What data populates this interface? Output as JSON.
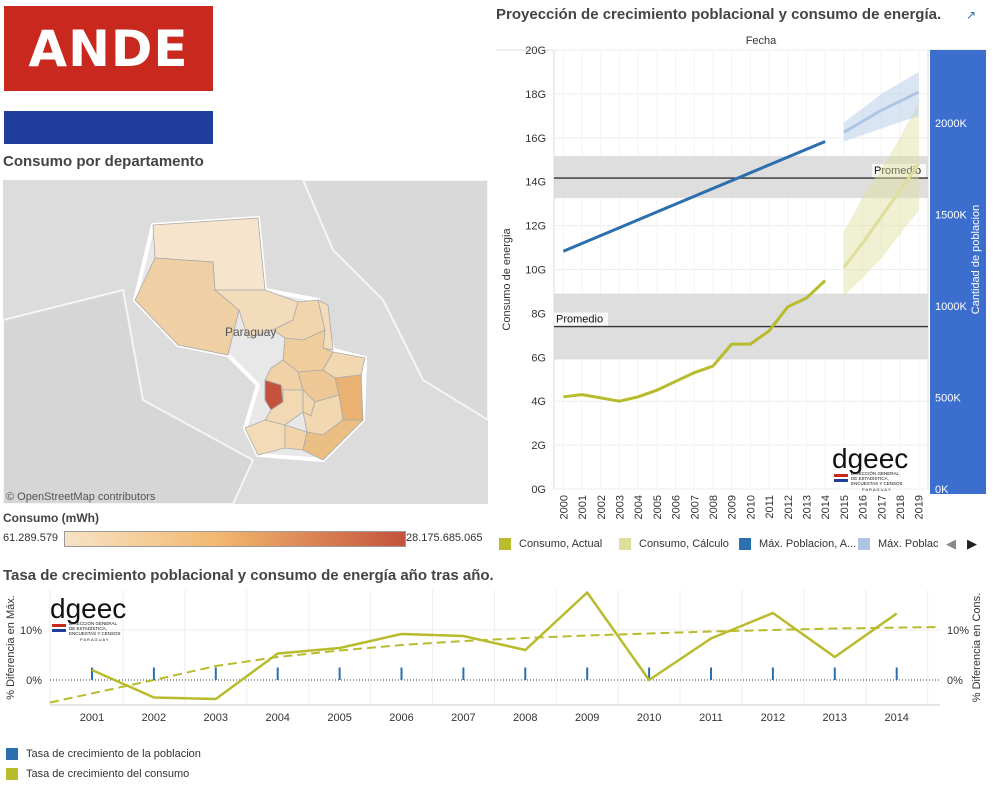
{
  "brand": {
    "logo_text": "ANDE"
  },
  "map_section": {
    "title": "Consumo por departamento",
    "country_label": "Paraguay",
    "attribution": "© OpenStreetMap contributors",
    "legend_title": "Consumo (mWh)",
    "legend_min": "61.289.579",
    "legend_max": "28.175.685.065",
    "colors": {
      "low": "#f7e3c6",
      "mid": "#f2b86e",
      "high": "#c4523c"
    }
  },
  "projection_section": {
    "title": "Proyección de crecimiento poblacional y consumo de energía."
  },
  "growth_section": {
    "title": "Tasa de crecimiento poblacional y consumo de energía año tras año."
  },
  "dgeec_logo": {
    "name": "dgeec",
    "line1": "DIRECCIÓN GENERAL",
    "line2": "DE ESTADÍSTICA,",
    "line3": "ENCUESTAS Y CENSOS",
    "line4": "P A R A G U A Y"
  },
  "chart_data": [
    {
      "type": "line",
      "title": "Proyección de crecimiento poblacional y consumo de energía.",
      "xlabel": "Fecha",
      "ylabel": "Consumo de energia",
      "y2label": "Cantidad de poblacion",
      "ylim": [
        0,
        20
      ],
      "y2lim": [
        0,
        2400
      ],
      "y_ticks": [
        "0G",
        "2G",
        "4G",
        "6G",
        "8G",
        "10G",
        "12G",
        "14G",
        "16G",
        "18G",
        "20G"
      ],
      "y2_ticks": [
        {
          "v": 0,
          "label": "0K"
        },
        {
          "v": 500,
          "label": "500K"
        },
        {
          "v": 1000,
          "label": "1000K"
        },
        {
          "v": 1500,
          "label": "1500K"
        },
        {
          "v": 2000,
          "label": "2000K"
        }
      ],
      "x": [
        "2000",
        "2001",
        "2002",
        "2003",
        "2004",
        "2005",
        "2006",
        "2007",
        "2008",
        "2009",
        "2010",
        "2011",
        "2012",
        "2013",
        "2014",
        "2015",
        "2016",
        "2017",
        "2018",
        "2019"
      ],
      "reference_lines": [
        {
          "label": "Promedio",
          "axis": "y",
          "value": 7.4,
          "band": [
            5.9,
            8.9
          ]
        },
        {
          "label": "Promedio",
          "axis": "y2",
          "value": 1700,
          "band": [
            1590,
            1820
          ]
        }
      ],
      "series": [
        {
          "name": "Consumo, Actual",
          "axis": "y",
          "color": "#b8bc2c",
          "x": [
            "2000",
            "2001",
            "2002",
            "2003",
            "2004",
            "2005",
            "2006",
            "2007",
            "2008",
            "2009",
            "2010",
            "2011",
            "2012",
            "2013",
            "2014"
          ],
          "values": [
            4.2,
            4.3,
            4.15,
            4.0,
            4.2,
            4.5,
            4.9,
            5.3,
            5.6,
            6.6,
            6.6,
            7.2,
            8.3,
            8.7,
            9.5
          ]
        },
        {
          "name": "Consumo, Cálculo",
          "axis": "y",
          "color": "#dedd9c",
          "x": [
            "2015",
            "2016",
            "2017",
            "2018",
            "2019"
          ],
          "values": [
            10.1,
            11.2,
            12.4,
            13.6,
            14.8
          ],
          "band_low": [
            8.8,
            9.6,
            10.5,
            11.6,
            12.7
          ],
          "band_high": [
            11.7,
            13.3,
            14.6,
            16.0,
            17.6
          ]
        },
        {
          "name": "Máx. Poblacion, A...",
          "axis": "y2",
          "color": "#2b6fae",
          "x": [
            "2000",
            "2014"
          ],
          "values": [
            1300,
            1900
          ]
        },
        {
          "name": "Máx. Poblac",
          "axis": "y2",
          "color": "#aec5e6",
          "x": [
            "2015",
            "2016",
            "2017",
            "2018",
            "2019"
          ],
          "values": [
            1950,
            2010,
            2070,
            2120,
            2170
          ],
          "band_low": [
            1900,
            1935,
            1970,
            2005,
            2040
          ],
          "band_high": [
            2005,
            2080,
            2160,
            2220,
            2280
          ]
        }
      ]
    },
    {
      "type": "line",
      "title": "Tasa de crecimiento poblacional y consumo de energía año tras año.",
      "ylabel": "% Diferencia en Máx.",
      "y2label": "% Diferencia en Cons.",
      "y_ticks": [
        {
          "v": 0,
          "label": "0%"
        },
        {
          "v": 10,
          "label": "10%"
        }
      ],
      "y2_ticks": [
        {
          "v": 0,
          "label": "0%"
        },
        {
          "v": 10,
          "label": "10%"
        }
      ],
      "ylim": [
        -5,
        18
      ],
      "x": [
        "2001",
        "2002",
        "2003",
        "2004",
        "2005",
        "2006",
        "2007",
        "2008",
        "2009",
        "2010",
        "2011",
        "2012",
        "2013",
        "2014"
      ],
      "series": [
        {
          "name": "Tasa de crecimiento de la poblacion",
          "color": "#2b6fae",
          "values": [
            2.5,
            2.5,
            2.5,
            2.5,
            2.5,
            2.5,
            2.5,
            2.5,
            2.5,
            2.5,
            2.5,
            2.5,
            2.5,
            2.5
          ]
        },
        {
          "name": "Tasa de crecimiento del consumo",
          "color": "#b8bc2c",
          "values": [
            2.0,
            -3.5,
            -3.8,
            5.3,
            6.4,
            9.2,
            8.8,
            6.0,
            17.5,
            0.0,
            8.3,
            13.4,
            4.6,
            13.3
          ]
        }
      ],
      "trend": {
        "color": "#b8bc2c",
        "values": [
          -4.5,
          0.0,
          2.8,
          4.6,
          5.9,
          7.0,
          7.8,
          8.4,
          8.9,
          9.3,
          9.7,
          10.0,
          10.3,
          10.6
        ],
        "x_start": "2000.6",
        "x_end": "2014.7"
      }
    }
  ]
}
